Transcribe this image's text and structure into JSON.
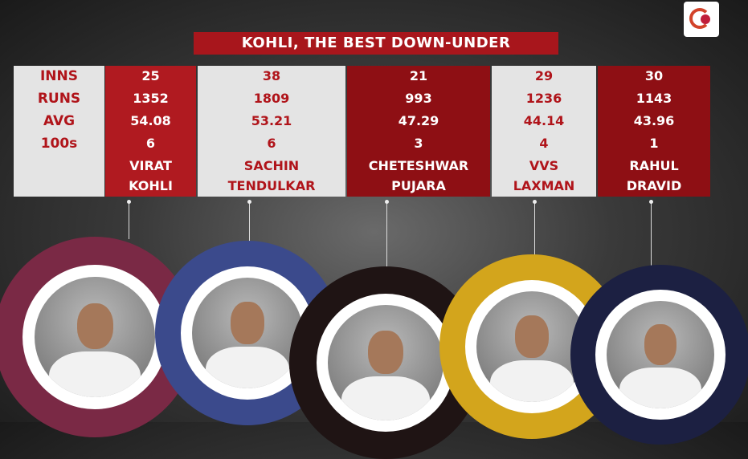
{
  "title": "KOHLI, THE BEST DOWN-UNDER",
  "row_labels": [
    "INNS",
    "RUNS",
    "AVG",
    "100s"
  ],
  "players": [
    {
      "name1": "VIRAT",
      "name2": "KOHLI",
      "inns": "25",
      "runs": "1352",
      "avg": "54.08",
      "hundreds": "6",
      "ring_color": "#7a2945"
    },
    {
      "name1": "SACHIN",
      "name2": "TENDULKAR",
      "inns": "38",
      "runs": "1809",
      "avg": "53.21",
      "hundreds": "6",
      "ring_color": "#3b4a8c"
    },
    {
      "name1": "CHETESHWAR",
      "name2": "PUJARA",
      "inns": "21",
      "runs": "993",
      "avg": "47.29",
      "hundreds": "3",
      "ring_color": "#1f1414"
    },
    {
      "name1": "VVS",
      "name2": "LAXMAN",
      "inns": "29",
      "runs": "1236",
      "avg": "44.14",
      "hundreds": "4",
      "ring_color": "#d3a51c"
    },
    {
      "name1": "RAHUL",
      "name2": "DRAVID",
      "inns": "30",
      "runs": "1143",
      "avg": "43.96",
      "hundreds": "1",
      "ring_color": "#1c2042"
    }
  ]
}
